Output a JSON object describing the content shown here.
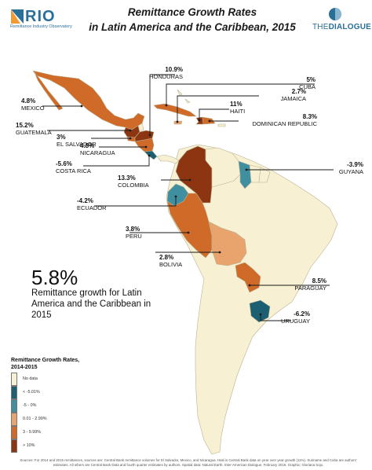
{
  "header": {
    "title_line1": "Remittance Growth Rates",
    "title_line2": "in Latin America and the Caribbean, 2015",
    "rio_logo": "RIO",
    "rio_subtitle": "Remittance Industry Observatory",
    "dialogue_logo_prefix": "THE",
    "dialogue_logo_main": "DIALOGUE"
  },
  "colors": {
    "no_data": "#f7f0d2",
    "lt_minus5": "#1d5f72",
    "minus5_to_0": "#3f8fa1",
    "c0_to_3": "#e9a36c",
    "c3_to_10": "#cf6a28",
    "gt_10": "#8c3510",
    "ocean": "#ffffff",
    "border": "#b9b294"
  },
  "countries": [
    {
      "name": "HONDURAS",
      "value": "10.9%"
    },
    {
      "name": "CUBA",
      "value": "5%"
    },
    {
      "name": "JAMAICA",
      "value": "2.7%"
    },
    {
      "name": "MEXICO",
      "value": "4.8%"
    },
    {
      "name": "HAITI",
      "value": "11%"
    },
    {
      "name": "DOMINICAN REPUBLIC",
      "value": "8.3%"
    },
    {
      "name": "GUATEMALA",
      "value": "15.2%"
    },
    {
      "name": "EL SALVADOR",
      "value": "3%"
    },
    {
      "name": "NICARAGUA",
      "value": "4.8%"
    },
    {
      "name": "COSTA RICA",
      "value": "-5.6%"
    },
    {
      "name": "GUYANA",
      "value": "-3.9%"
    },
    {
      "name": "COLOMBIA",
      "value": "13.3%"
    },
    {
      "name": "ECUADOR",
      "value": "-4.2%"
    },
    {
      "name": "PERU",
      "value": "3.8%"
    },
    {
      "name": "BOLIVIA",
      "value": "2.8%"
    },
    {
      "name": "PARAGUAY",
      "value": "8.5%"
    },
    {
      "name": "URUGUAY",
      "value": "-6.2%"
    }
  ],
  "highlight": {
    "value": "5.8%",
    "text": "Remittance growth for Latin America and the Caribbean in 2015"
  },
  "legend": {
    "title": "Remittance Growth Rates, 2014-2015",
    "items": [
      {
        "label": "No data",
        "color": "#f7f0d2"
      },
      {
        "label": "< -5.01%",
        "color": "#1d5f72"
      },
      {
        "label": "-5 - 0%",
        "color": "#3f8fa1"
      },
      {
        "label": "0.01 - 2.99%",
        "color": "#e9a36c"
      },
      {
        "label": "3 - 9.99%",
        "color": "#cf6a28"
      },
      {
        "label": "> 10%",
        "color": "#8c3510"
      }
    ]
  },
  "sources": "Sources: For 2014 and 2015 remittances, sources are: Central Bank remittance volumes for El Salvador, Mexico, and Nicaragua. Haiti is Central Bank data on year over year growth (11%). Suriname and Cuba are authors' estimates. All others are Central Bank Data and fourth quarter estimates by authors. Spatial data: Natural Earth. Inter-American Dialogue, February 2016. Graphic: Gloriana Sojo."
}
